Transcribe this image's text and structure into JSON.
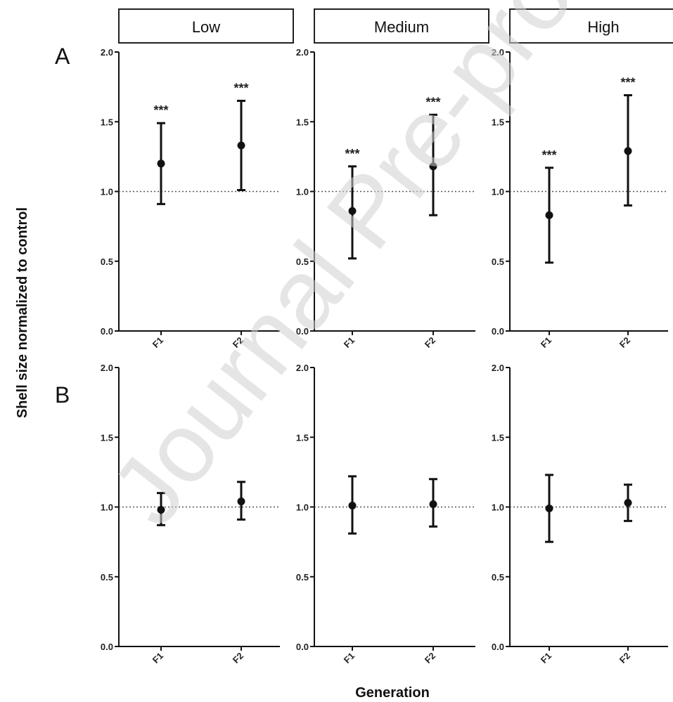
{
  "panel_headers": [
    "Low",
    "Medium",
    "High"
  ],
  "row_labels": [
    "A",
    "B"
  ],
  "ylabel": "Shell size normalized to control",
  "xlabel": "Generation",
  "watermark": "Journal Pre-proof",
  "chart_data": [
    {
      "type": "scatter",
      "row": "A",
      "panel": "Low",
      "categories": [
        "F1",
        "F2"
      ],
      "ylim": [
        0,
        2
      ],
      "yticks": [
        "0.0",
        "0.5",
        "1.0",
        "1.5",
        "2.0"
      ],
      "reference_line": 1.0,
      "points": [
        {
          "x": "F1",
          "y": 1.2,
          "low": 0.91,
          "high": 1.49,
          "label": "***"
        },
        {
          "x": "F2",
          "y": 1.33,
          "low": 1.01,
          "high": 1.65,
          "label": "***"
        }
      ]
    },
    {
      "type": "scatter",
      "row": "A",
      "panel": "Medium",
      "categories": [
        "F1",
        "F2"
      ],
      "ylim": [
        0,
        2
      ],
      "yticks": [
        "0.0",
        "0.5",
        "1.0",
        "1.5",
        "2.0"
      ],
      "reference_line": 1.0,
      "points": [
        {
          "x": "F1",
          "y": 0.86,
          "low": 0.52,
          "high": 1.18,
          "label": "***"
        },
        {
          "x": "F2",
          "y": 1.18,
          "low": 0.83,
          "high": 1.55,
          "label": "***"
        }
      ]
    },
    {
      "type": "scatter",
      "row": "A",
      "panel": "High",
      "categories": [
        "F1",
        "F2"
      ],
      "ylim": [
        0,
        2
      ],
      "yticks": [
        "0.0",
        "0.5",
        "1.0",
        "1.5",
        "2.0"
      ],
      "reference_line": 1.0,
      "points": [
        {
          "x": "F1",
          "y": 0.83,
          "low": 0.49,
          "high": 1.17,
          "label": "***"
        },
        {
          "x": "F2",
          "y": 1.29,
          "low": 0.9,
          "high": 1.69,
          "label": "***"
        }
      ]
    },
    {
      "type": "scatter",
      "row": "B",
      "panel": "Low",
      "categories": [
        "F1",
        "F2"
      ],
      "ylim": [
        0,
        2
      ],
      "yticks": [
        "0.0",
        "0.5",
        "1.0",
        "1.5",
        "2.0"
      ],
      "reference_line": 1.0,
      "points": [
        {
          "x": "F1",
          "y": 0.98,
          "low": 0.87,
          "high": 1.1,
          "label": ""
        },
        {
          "x": "F2",
          "y": 1.04,
          "low": 0.91,
          "high": 1.18,
          "label": ""
        }
      ]
    },
    {
      "type": "scatter",
      "row": "B",
      "panel": "Medium",
      "categories": [
        "F1",
        "F2"
      ],
      "ylim": [
        0,
        2
      ],
      "yticks": [
        "0.0",
        "0.5",
        "1.0",
        "1.5",
        "2.0"
      ],
      "reference_line": 1.0,
      "points": [
        {
          "x": "F1",
          "y": 1.01,
          "low": 0.81,
          "high": 1.22,
          "label": ""
        },
        {
          "x": "F2",
          "y": 1.02,
          "low": 0.86,
          "high": 1.2,
          "label": ""
        }
      ]
    },
    {
      "type": "scatter",
      "row": "B",
      "panel": "High",
      "categories": [
        "F1",
        "F2"
      ],
      "ylim": [
        0,
        2
      ],
      "yticks": [
        "0.0",
        "0.5",
        "1.0",
        "1.5",
        "2.0"
      ],
      "reference_line": 1.0,
      "points": [
        {
          "x": "F1",
          "y": 0.99,
          "low": 0.75,
          "high": 1.23,
          "label": ""
        },
        {
          "x": "F2",
          "y": 1.03,
          "low": 0.9,
          "high": 1.16,
          "label": ""
        }
      ]
    }
  ]
}
